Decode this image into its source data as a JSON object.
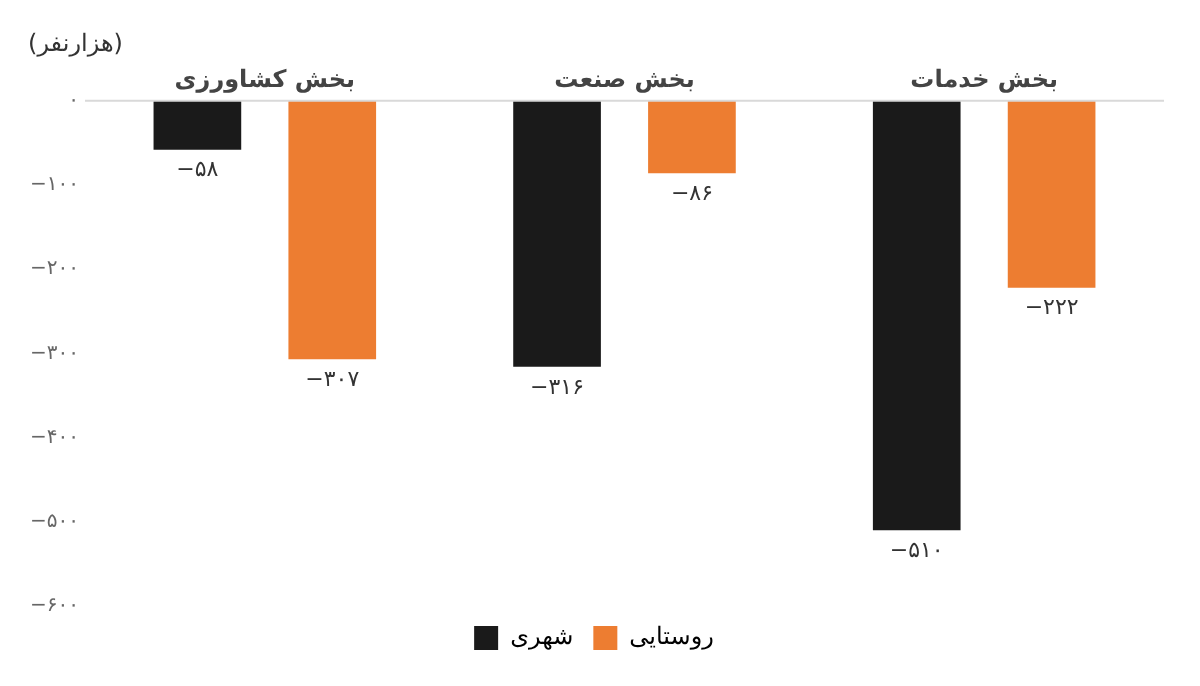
{
  "chart_data": {
    "type": "bar",
    "ylabel": "(هزارنفر)",
    "categories": [
      "بخش کشاورزی",
      "بخش صنعت",
      "بخش خدمات"
    ],
    "series": [
      {
        "name": "شهری",
        "color": "#1a1a1a",
        "values": [
          -58,
          -316,
          -510
        ],
        "value_labels": [
          "−۵۸",
          "−۳۱۶",
          "−۵۱۰"
        ]
      },
      {
        "name": "روستایی",
        "color": "#ed7d31",
        "values": [
          -307,
          -86,
          -222
        ],
        "value_labels": [
          "−۳۰۷",
          "−۸۶",
          "−۲۲۲"
        ]
      }
    ],
    "ylim": [
      -600,
      0
    ],
    "yticks": [
      {
        "value": 0,
        "label": "۰"
      },
      {
        "value": -100,
        "label": "−۱۰۰"
      },
      {
        "value": -200,
        "label": "−۲۰۰"
      },
      {
        "value": -300,
        "label": "−۳۰۰"
      },
      {
        "value": -400,
        "label": "−۴۰۰"
      },
      {
        "value": -500,
        "label": "−۵۰۰"
      },
      {
        "value": -600,
        "label": "−۶۰۰"
      }
    ],
    "grid": false,
    "legend": "bottom"
  }
}
